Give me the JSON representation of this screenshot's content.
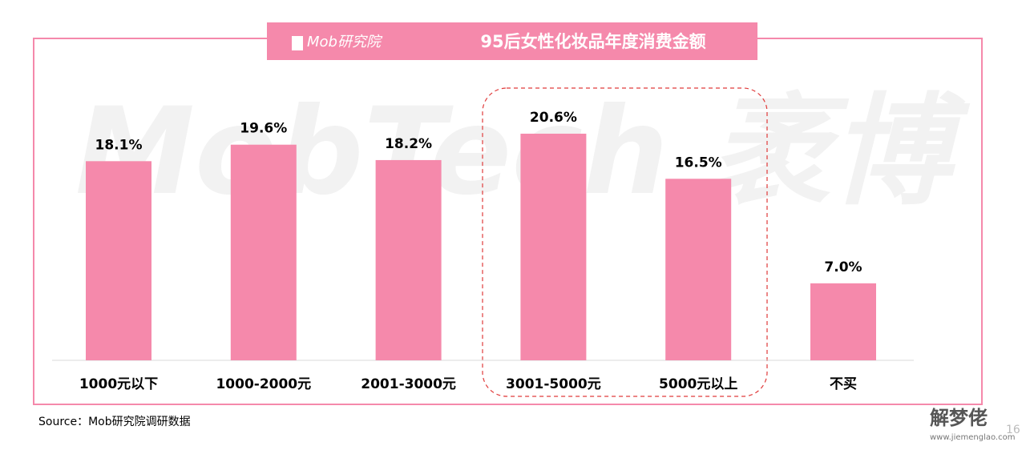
{
  "chart_data": {
    "type": "bar",
    "title": "95后女性化妆品年度消费金额",
    "brand": "Mob研究院",
    "background_watermark": "MobTech 袤博",
    "categories": [
      "1000元以下",
      "1000-2000元",
      "2001-3000元",
      "3001-5000元",
      "5000元以上",
      "不买"
    ],
    "values": [
      18.1,
      19.6,
      18.2,
      20.6,
      16.5,
      7.0
    ],
    "value_labels": [
      "18.1%",
      "19.6%",
      "18.2%",
      "20.6%",
      "16.5%",
      "7.0%"
    ],
    "color": "#f589ab",
    "source": "Source：Mob研究院调研数据",
    "page_number": "16",
    "site_watermark": "解梦佬",
    "site_url": "www.jiemenglao.com"
  }
}
